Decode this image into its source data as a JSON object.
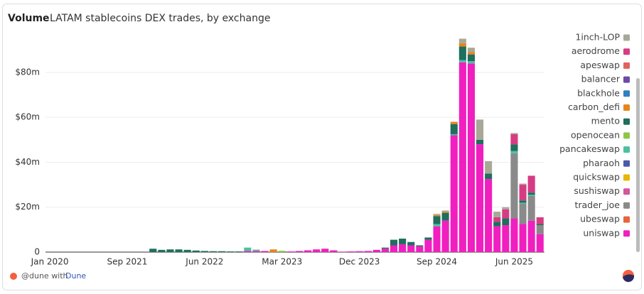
{
  "chart_data": {
    "type": "stacked_bar",
    "title": "Volume",
    "subtitle": "LATAM stablecoins DEX trades, by exchange",
    "categories": [
      "Jan 2020",
      null,
      null,
      null,
      null,
      null,
      null,
      null,
      null,
      "Sep 2021",
      null,
      null,
      null,
      null,
      null,
      null,
      null,
      null,
      "Jun 2022",
      null,
      null,
      null,
      null,
      null,
      null,
      null,
      null,
      "Mar 2023",
      null,
      null,
      null,
      null,
      null,
      null,
      null,
      null,
      "Dec 2023",
      null,
      null,
      null,
      null,
      null,
      null,
      null,
      null,
      "Sep 2024",
      null,
      null,
      null,
      null,
      null,
      null,
      null,
      null,
      "Jun 2025",
      null,
      null,
      null
    ],
    "ylim": [
      0,
      98
    ],
    "yticks": [
      0,
      {
        "value": 20,
        "label": "$20m"
      },
      {
        "value": 40,
        "label": "$40m"
      },
      {
        "value": 60,
        "label": "$60m"
      },
      {
        "value": 80,
        "label": "$80m"
      }
    ],
    "grid": true,
    "legend": "right",
    "series": [
      {
        "name": "1inch-LOP",
        "color": "#a9a898",
        "values": [
          0,
          0,
          0,
          0,
          0,
          0,
          0,
          0,
          0,
          0,
          0,
          0,
          0,
          0,
          0,
          0,
          0,
          0,
          0,
          0,
          0,
          0,
          0,
          0,
          0,
          0,
          0,
          0,
          0,
          0,
          0,
          0,
          0,
          0,
          0,
          0,
          0,
          0,
          0,
          0,
          0,
          0,
          0,
          0,
          0,
          0.5,
          0.5,
          0,
          2,
          2,
          9,
          5.5,
          2.5,
          1,
          0.5,
          0.5,
          0,
          0
        ]
      },
      {
        "name": "aerodrome",
        "color": "#d63c83",
        "values": [
          0,
          0,
          0,
          0,
          0,
          0,
          0,
          0,
          0,
          0,
          0,
          0,
          0,
          0,
          0,
          0,
          0,
          0,
          0,
          0,
          0,
          0,
          0,
          0,
          0,
          0,
          0,
          0,
          0,
          0,
          0,
          0,
          0,
          0,
          0,
          0,
          0,
          0,
          0,
          0,
          0,
          0,
          0,
          0,
          0,
          0,
          0,
          0,
          0,
          0,
          0,
          0,
          2,
          4,
          4.5,
          7,
          7.5,
          3
        ]
      },
      {
        "name": "apeswap",
        "color": "#e0645c",
        "values": [
          0,
          0,
          0,
          0,
          0,
          0,
          0,
          0,
          0,
          0,
          0,
          0,
          0,
          0,
          0,
          0,
          0,
          0,
          0,
          0,
          0,
          0,
          0,
          0,
          0,
          0,
          0,
          0,
          0,
          0,
          0,
          0,
          0,
          0,
          0,
          0,
          0,
          0,
          0,
          0,
          0,
          0,
          0,
          0,
          0,
          0,
          0,
          0,
          0,
          0,
          0,
          0,
          0,
          0,
          0,
          0,
          0,
          0
        ]
      },
      {
        "name": "balancer",
        "color": "#6e4aa8",
        "values": [
          0,
          0,
          0,
          0,
          0,
          0,
          0,
          0,
          0,
          0,
          0,
          0,
          0,
          0,
          0,
          0,
          0,
          0,
          0,
          0,
          0,
          0,
          0,
          0,
          0,
          0,
          0,
          0,
          0,
          0,
          0,
          0,
          0,
          0,
          0,
          0,
          0,
          0,
          0,
          0,
          0,
          0,
          0,
          0,
          0,
          0,
          0,
          0,
          0,
          0,
          0,
          0,
          0,
          0,
          0,
          0,
          0,
          0
        ]
      },
      {
        "name": "blackhole",
        "color": "#2f7fc1",
        "values": [
          0,
          0,
          0,
          0,
          0,
          0,
          0,
          0,
          0,
          0,
          0,
          0,
          0,
          0,
          0,
          0,
          0,
          0,
          0,
          0,
          0,
          0,
          0,
          0,
          0,
          0,
          0,
          0,
          0,
          0,
          0,
          0,
          0,
          0,
          0,
          0,
          0,
          0,
          0,
          0,
          0,
          0,
          0,
          0,
          0,
          0,
          0,
          0,
          0,
          0,
          0,
          0,
          0,
          0,
          0,
          0,
          0,
          0
        ]
      },
      {
        "name": "carbon_defi",
        "color": "#e8851a",
        "values": [
          0,
          0,
          0,
          0,
          0,
          0,
          0,
          0,
          0,
          0,
          0,
          0,
          0,
          0,
          0,
          0,
          0,
          0,
          0,
          0,
          0,
          0,
          0,
          0,
          0,
          0,
          1.2,
          0,
          0,
          0,
          0,
          0,
          0,
          0,
          0,
          0,
          0,
          0,
          0,
          0,
          0,
          0,
          0,
          0,
          0,
          0.5,
          0.5,
          1,
          1.5,
          1,
          0,
          0,
          0,
          0,
          0,
          0,
          0,
          0
        ]
      },
      {
        "name": "mento",
        "color": "#1f6e5e",
        "values": [
          0,
          0,
          0,
          0,
          0,
          0,
          0,
          0,
          0,
          0,
          0,
          0,
          1.5,
          1,
          1.2,
          1.2,
          1,
          0.7,
          0.5,
          0.4,
          0.4,
          0.3,
          0.3,
          0,
          0,
          0,
          0,
          0,
          0,
          0,
          0,
          0,
          0,
          0,
          0,
          0,
          0,
          0,
          0,
          0.5,
          2.5,
          2.5,
          1.5,
          0.5,
          1,
          3.5,
          3.5,
          4.5,
          6,
          3,
          2,
          2.5,
          2,
          3,
          3,
          1,
          1,
          0.5
        ]
      },
      {
        "name": "openocean",
        "color": "#8fc64a",
        "values": [
          0,
          0,
          0,
          0,
          0,
          0,
          0,
          0,
          0,
          0,
          0,
          0,
          0,
          0,
          0,
          0,
          0,
          0,
          0,
          0,
          0,
          0,
          0,
          0,
          0,
          0,
          0,
          0.6,
          0,
          0,
          0,
          0,
          0,
          0,
          0,
          0,
          0,
          0,
          0,
          0,
          0,
          0,
          0,
          0,
          0,
          0,
          0,
          0,
          0,
          0,
          0,
          0,
          0,
          0,
          0,
          0,
          0,
          0
        ]
      },
      {
        "name": "pancakeswap",
        "color": "#4cc0a0",
        "values": [
          0,
          0,
          0,
          0,
          0,
          0,
          0,
          0,
          0,
          0,
          0,
          0,
          0,
          0,
          0,
          0,
          0,
          0,
          0,
          0,
          0,
          0,
          0,
          1.5,
          0.6,
          0,
          0,
          0,
          0,
          0,
          0,
          0,
          0,
          0,
          0,
          0,
          0,
          0,
          0,
          0,
          0,
          0,
          0,
          0,
          0,
          1,
          0,
          0.5,
          1,
          1,
          0,
          0,
          0,
          0,
          1,
          0.5,
          0.5,
          0
        ]
      },
      {
        "name": "pharaoh",
        "color": "#4c5aa8",
        "values": [
          0,
          0,
          0,
          0,
          0,
          0,
          0,
          0,
          0,
          0,
          0,
          0,
          0,
          0,
          0,
          0,
          0,
          0,
          0,
          0,
          0,
          0,
          0,
          0,
          0,
          0,
          0,
          0,
          0,
          0,
          0,
          0,
          0,
          0,
          0,
          0,
          0,
          0,
          0,
          0,
          0,
          0,
          0,
          0,
          0,
          0,
          0,
          0,
          0,
          0,
          0,
          0,
          0,
          0,
          0,
          0,
          0,
          0
        ]
      },
      {
        "name": "quickswap",
        "color": "#e6b800",
        "values": [
          0,
          0,
          0,
          0,
          0,
          0,
          0,
          0,
          0,
          0,
          0,
          0,
          0,
          0,
          0,
          0,
          0,
          0,
          0,
          0,
          0,
          0,
          0,
          0,
          0,
          0,
          0,
          0,
          0,
          0,
          0,
          0,
          0,
          0,
          0,
          0,
          0,
          0,
          0,
          0,
          0,
          0,
          0,
          0,
          0,
          0,
          0,
          0,
          0,
          0,
          0,
          0,
          0,
          0,
          0,
          0,
          0,
          0
        ]
      },
      {
        "name": "sushiswap",
        "color": "#d2579c",
        "values": [
          0,
          0,
          0,
          0,
          0,
          0,
          0,
          0,
          0,
          0,
          0,
          0,
          0,
          0,
          0,
          0,
          0,
          0,
          0,
          0,
          0,
          0,
          0,
          0,
          0,
          0,
          0,
          0,
          0,
          0,
          0,
          0,
          0,
          0,
          0,
          0,
          0,
          0,
          0,
          0,
          0,
          0,
          0,
          0,
          0,
          0,
          0,
          0,
          0,
          0,
          0,
          0,
          0,
          0,
          0,
          0,
          0,
          0
        ]
      },
      {
        "name": "trader_joe",
        "color": "#8a8a8a",
        "values": [
          0,
          0,
          0,
          0,
          0,
          0,
          0,
          0,
          0,
          0,
          0,
          0,
          0,
          0,
          0,
          0,
          0,
          0,
          0,
          0,
          0,
          0,
          0,
          0,
          0,
          0,
          0,
          0,
          0,
          0,
          0,
          0,
          0,
          0,
          0,
          0,
          0,
          0,
          0,
          0,
          0,
          0,
          0,
          0,
          0,
          0,
          0,
          0,
          0,
          0,
          0,
          0,
          0,
          0,
          29,
          9,
          11,
          4
        ]
      },
      {
        "name": "ubeswap",
        "color": "#e8643c",
        "values": [
          0,
          0,
          0,
          0,
          0,
          0,
          0,
          0,
          0,
          0,
          0,
          0,
          0,
          0,
          0,
          0,
          0,
          0,
          0,
          0,
          0,
          0,
          0,
          0,
          0,
          0,
          0,
          0,
          0,
          0,
          0,
          0,
          0,
          0,
          0,
          0,
          0,
          0,
          0,
          0,
          0,
          0,
          0,
          0,
          0,
          0,
          0,
          0,
          0,
          0,
          0,
          0,
          0,
          0,
          0,
          0,
          0,
          0
        ]
      },
      {
        "name": "uniswap",
        "color": "#f01fbf",
        "values": [
          0,
          0,
          0,
          0,
          0,
          0,
          0,
          0,
          0,
          0,
          0,
          0,
          0,
          0,
          0,
          0,
          0,
          0,
          0,
          0,
          0,
          0,
          0,
          0.5,
          0.5,
          0.5,
          0,
          0,
          0.3,
          0.5,
          0.8,
          1.2,
          1.5,
          0.8,
          0.2,
          0.3,
          0.4,
          0.5,
          1.0,
          1.5,
          3,
          3.5,
          3,
          2.5,
          5.5,
          11.5,
          14,
          52,
          84.5,
          84,
          48,
          32.5,
          11.5,
          12,
          15,
          12.5,
          14,
          8
        ]
      }
    ]
  },
  "footer": {
    "text": "@dune with",
    "link": "Dune"
  }
}
